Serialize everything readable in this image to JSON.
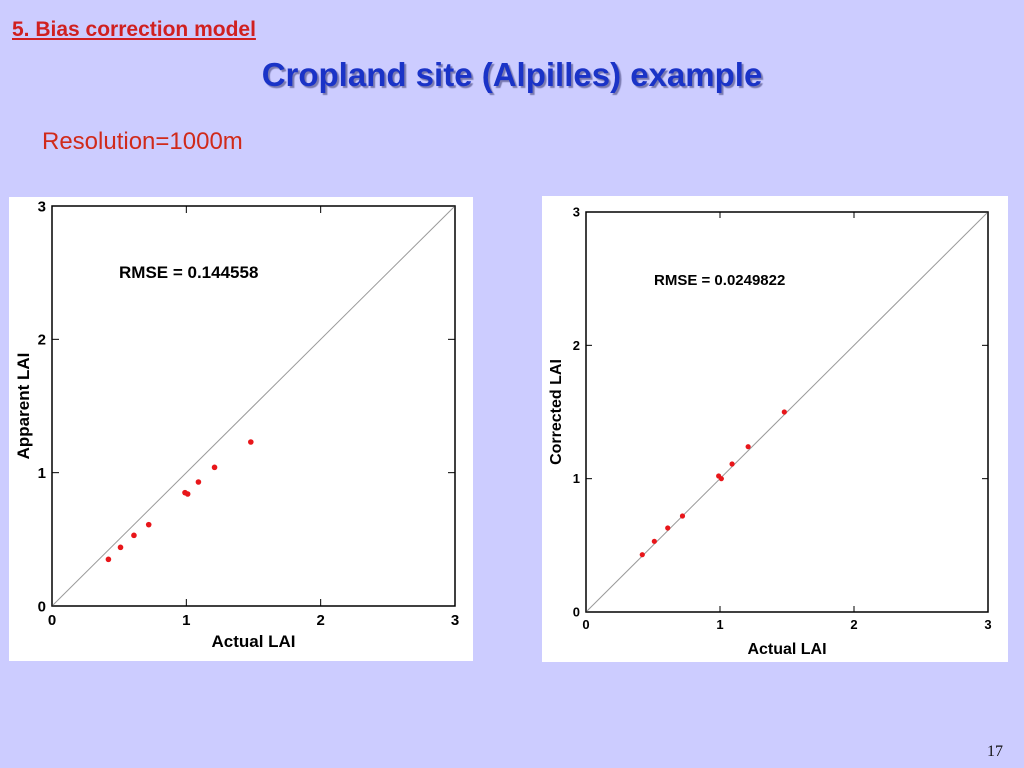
{
  "slide": {
    "section_heading": "5. Bias correction model",
    "title": "Cropland site (Alpilles) example",
    "subtitle": "Resolution=1000m",
    "page_number": "17"
  },
  "colors": {
    "background": "#ccccff",
    "section_heading": "#d02020",
    "title": "#1a33c7",
    "subtitle": "#d02a1a",
    "points": "#e8161a",
    "reference_line": "#9a9a9a"
  },
  "chart_data": [
    {
      "type": "scatter",
      "title": "",
      "xlabel": "Actual LAI",
      "ylabel": "Apparent LAI",
      "xlim": [
        0,
        3
      ],
      "ylim": [
        0,
        3
      ],
      "xticks": [
        "0",
        "1",
        "2",
        "3"
      ],
      "yticks": [
        "0",
        "1",
        "2",
        "3"
      ],
      "annotation": "RMSE = 0.144558",
      "reference_line": "1:1",
      "grid": false,
      "series": [
        {
          "x": [
            0.42,
            0.51,
            0.61,
            0.72,
            0.99,
            1.01,
            1.09,
            1.21,
            1.48
          ],
          "y": [
            0.35,
            0.44,
            0.53,
            0.61,
            0.85,
            0.84,
            0.93,
            1.04,
            1.23
          ]
        }
      ]
    },
    {
      "type": "scatter",
      "title": "",
      "xlabel": "Actual LAI",
      "ylabel": "Corrected LAI",
      "xlim": [
        0,
        3
      ],
      "ylim": [
        0,
        3
      ],
      "xticks": [
        "0",
        "1",
        "2",
        "3"
      ],
      "yticks": [
        "0",
        "1",
        "2",
        "3"
      ],
      "annotation": "RMSE = 0.0249822",
      "reference_line": "1:1",
      "grid": false,
      "series": [
        {
          "x": [
            0.42,
            0.51,
            0.61,
            0.72,
            0.99,
            1.01,
            1.09,
            1.21,
            1.48
          ],
          "y": [
            0.43,
            0.53,
            0.63,
            0.72,
            1.02,
            1.0,
            1.11,
            1.24,
            1.5
          ]
        }
      ]
    }
  ]
}
